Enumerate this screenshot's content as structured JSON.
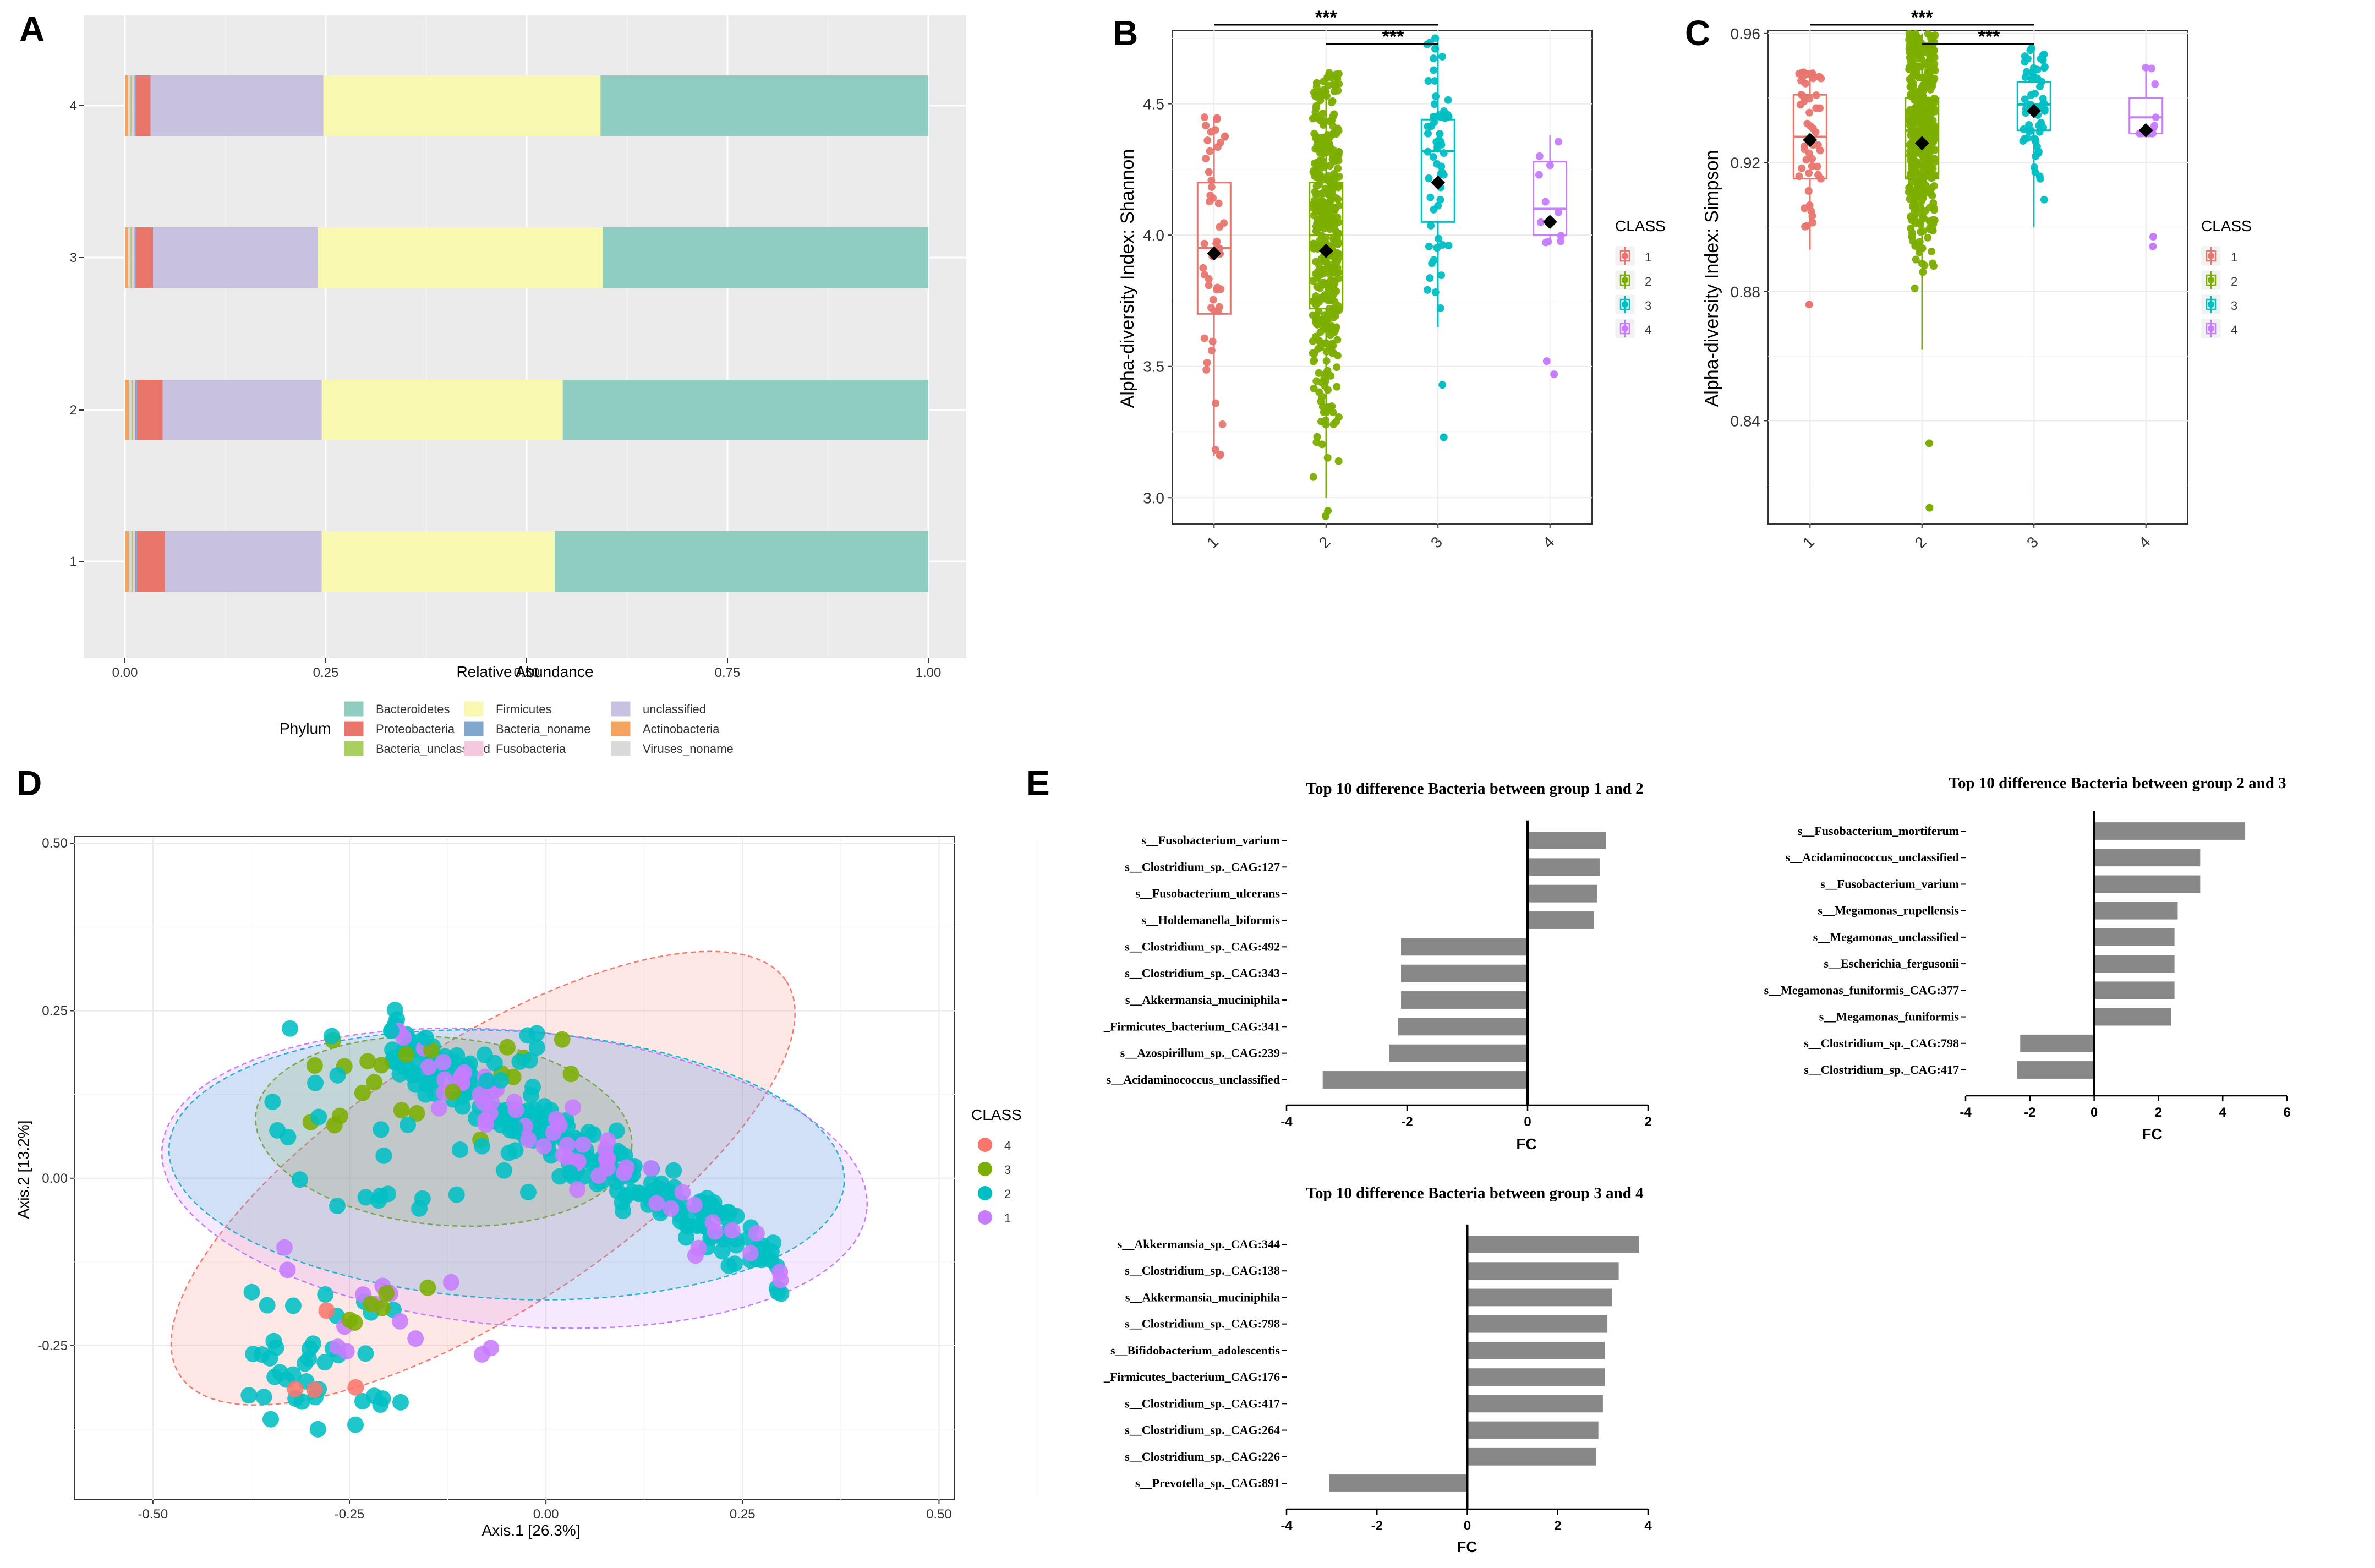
{
  "chart_data": [
    {
      "id": "A",
      "panel_label": "A",
      "type": "bar",
      "orientation": "horizontal",
      "stacked": true,
      "categories": [
        "1",
        "2",
        "3",
        "4"
      ],
      "xlabel": "Relative Abundance",
      "xlim": [
        0,
        1
      ],
      "xticks": [
        "0.00",
        "0.25",
        "0.50",
        "0.75",
        "1.00"
      ],
      "legend_title": "Phylum",
      "series": [
        {
          "name": "Actinobacteria",
          "color": "#F4A460",
          "values": [
            0.005,
            0.005,
            0.004,
            0.004
          ]
        },
        {
          "name": "Viruses_noname",
          "color": "#d9d9d9",
          "values": [
            0.003,
            0.003,
            0.003,
            0.003
          ]
        },
        {
          "name": "Bacteria_unclassified",
          "color": "#a8cf60",
          "values": [
            0.002,
            0.002,
            0.002,
            0.002
          ]
        },
        {
          "name": "Fusobacteria",
          "color": "#f4c8df",
          "values": [
            0.003,
            0.003,
            0.003,
            0.003
          ]
        },
        {
          "name": "Bacteria_noname",
          "color": "#7fa8cc",
          "values": [
            0.002,
            0.002,
            0.002,
            0.002
          ]
        },
        {
          "name": "Proteobacteria",
          "color": "#e9766a",
          "values": [
            0.035,
            0.032,
            0.021,
            0.018
          ]
        },
        {
          "name": "unclassified",
          "color": "#c8c2e0",
          "values": [
            0.195,
            0.198,
            0.205,
            0.215
          ]
        },
        {
          "name": "Firmicutes",
          "color": "#f8f8b0",
          "values": [
            0.29,
            0.3,
            0.355,
            0.345
          ]
        },
        {
          "name": "Bacteroidetes",
          "color": "#8ecdc0",
          "values": [
            0.465,
            0.455,
            0.405,
            0.408
          ]
        }
      ],
      "legend_order": [
        "Bacteroidetes",
        "Proteobacteria",
        "Bacteria_unclassified",
        "Firmicutes",
        "Bacteria_noname",
        "Fusobacteria",
        "unclassified",
        "Actinobacteria",
        "Viruses_noname"
      ]
    },
    {
      "id": "B",
      "panel_label": "B",
      "type": "scatter",
      "subtype": "boxplot_with_jitter",
      "ylabel": "Alpha-diversity Index: Shannon",
      "ylim": [
        2.9,
        4.78
      ],
      "yticks": [
        "3.0",
        "3.5",
        "4.0",
        "4.5"
      ],
      "categories": [
        "1",
        "2",
        "3",
        "4"
      ],
      "legend_title": "CLASS",
      "legend_labels": [
        "1",
        "2",
        "3",
        "4"
      ],
      "colors": [
        "#e8766f",
        "#7cae00",
        "#00bfc4",
        "#c77cff"
      ],
      "box": [
        {
          "q1": 3.7,
          "median": 3.95,
          "q3": 4.2,
          "lo": 3.16,
          "hi": 4.45,
          "mean": 3.93,
          "n": 50
        },
        {
          "q1": 3.72,
          "median": 4.0,
          "q3": 4.2,
          "lo": 3.0,
          "hi": 4.62,
          "mean": 3.94,
          "n": 420
        },
        {
          "q1": 4.05,
          "median": 4.32,
          "q3": 4.44,
          "lo": 3.65,
          "hi": 4.75,
          "mean": 4.2,
          "n": 60
        },
        {
          "q1": 4.0,
          "median": 4.1,
          "q3": 4.28,
          "lo": 3.97,
          "hi": 4.38,
          "mean": 4.05,
          "n": 12
        }
      ],
      "outliers": [
        [],
        [
          2.95,
          2.93
        ],
        [
          3.43,
          3.23
        ],
        [
          3.52,
          3.47
        ]
      ],
      "significance": [
        {
          "from": "1",
          "to": "3",
          "label": "***"
        },
        {
          "from": "2",
          "to": "3",
          "label": "***"
        }
      ]
    },
    {
      "id": "C",
      "panel_label": "C",
      "type": "scatter",
      "subtype": "boxplot_with_jitter",
      "ylabel": "Alpha-diversity Index: Simpson",
      "ylim": [
        0.808,
        0.961
      ],
      "yticks": [
        "0.84",
        "0.88",
        "0.92",
        "0.96"
      ],
      "categories": [
        "1",
        "2",
        "3",
        "4"
      ],
      "legend_title": "CLASS",
      "legend_labels": [
        "1",
        "2",
        "3",
        "4"
      ],
      "colors": [
        "#e8766f",
        "#7cae00",
        "#00bfc4",
        "#c77cff"
      ],
      "box": [
        {
          "q1": 0.915,
          "median": 0.928,
          "q3": 0.941,
          "lo": 0.893,
          "hi": 0.948,
          "mean": 0.927,
          "n": 50
        },
        {
          "q1": 0.915,
          "median": 0.93,
          "q3": 0.94,
          "lo": 0.862,
          "hi": 0.96,
          "mean": 0.926,
          "n": 420
        },
        {
          "q1": 0.93,
          "median": 0.938,
          "q3": 0.945,
          "lo": 0.9,
          "hi": 0.956,
          "mean": 0.936,
          "n": 60
        },
        {
          "q1": 0.929,
          "median": 0.934,
          "q3": 0.94,
          "lo": 0.929,
          "hi": 0.95,
          "mean": 0.93,
          "n": 12
        }
      ],
      "outliers": [
        [
          0.876
        ],
        [
          0.833,
          0.813
        ],
        [],
        [
          0.897,
          0.894
        ]
      ],
      "significance": [
        {
          "from": "1",
          "to": "3",
          "label": "***"
        },
        {
          "from": "2",
          "to": "3",
          "label": "***"
        }
      ]
    },
    {
      "id": "D",
      "panel_label": "D",
      "type": "scatter",
      "subtype": "pcoa_with_ellipses",
      "xlabel": "Axis.1   [26.3%]",
      "ylabel": "Axis.2   [13.2%]",
      "xlim": [
        -0.6,
        0.52
      ],
      "ylim": [
        -0.48,
        0.51
      ],
      "xticks": [
        "-0.50",
        "-0.25",
        "0.00",
        "0.25",
        "0.50"
      ],
      "yticks": [
        "-0.25",
        "0.00",
        "0.25",
        "0.50"
      ],
      "legend_title": "CLASS",
      "legend_labels": [
        "4",
        "3",
        "2",
        "1"
      ],
      "colors": {
        "1": "#c77cff",
        "2": "#00bfc4",
        "3": "#7cae00",
        "4": "#f8766d"
      },
      "ellipses": [
        {
          "class": "4",
          "cx": -0.08,
          "cy": 0.0,
          "rx": 0.46,
          "ry": 0.2,
          "angle": 33
        },
        {
          "class": "3",
          "cx": -0.13,
          "cy": 0.07,
          "rx": 0.24,
          "ry": 0.14,
          "angle": -5
        },
        {
          "class": "2",
          "cx": -0.05,
          "cy": 0.02,
          "rx": 0.43,
          "ry": 0.2,
          "angle": -3
        },
        {
          "class": "1",
          "cx": -0.04,
          "cy": 0.0,
          "rx": 0.45,
          "ry": 0.22,
          "angle": -5
        }
      ]
    },
    {
      "id": "E1",
      "panel_label": "E",
      "type": "bar",
      "orientation": "horizontal",
      "title": "Top 10 difference Bacteria  between group 1 and 2",
      "xlabel": "FC",
      "xlim": [
        -4,
        2
      ],
      "xticks": [
        "-4",
        "-2",
        "0",
        "2"
      ],
      "categories": [
        "s__Fusobacterium_varium",
        "s__Clostridium_sp._CAG:127",
        "s__Fusobacterium_ulcerans",
        "s__Holdemanella_biformis",
        "s__Clostridium_sp._CAG:492",
        "s__Clostridium_sp._CAG:343",
        "s__Akkermansia_muciniphila",
        "_Firmicutes_bacterium_CAG:341",
        "s__Azospirillum_sp._CAG:239",
        "s__Acidaminococcus_unclassified"
      ],
      "values": [
        1.3,
        1.2,
        1.15,
        1.1,
        -2.1,
        -2.1,
        -2.1,
        -2.15,
        -2.3,
        -3.4
      ]
    },
    {
      "id": "E2",
      "panel_label": "",
      "type": "bar",
      "orientation": "horizontal",
      "title": "Top 10 difference Bacteria  between group 2 and 3",
      "xlabel": "FC",
      "xlim": [
        -4,
        6
      ],
      "xticks": [
        "-4",
        "-2",
        "0",
        "2",
        "4",
        "6"
      ],
      "categories": [
        "s__Fusobacterium_mortiferum",
        "s__Acidaminococcus_unclassified",
        "s__Fusobacterium_varium",
        "s__Megamonas_rupellensis",
        "s__Megamonas_unclassified",
        "s__Escherichia_fergusonii",
        "s__Megamonas_funiformis_CAG:377",
        "s__Megamonas_funiformis",
        "s__Clostridium_sp._CAG:798",
        "s__Clostridium_sp._CAG:417"
      ],
      "values": [
        4.7,
        3.3,
        3.3,
        2.6,
        2.5,
        2.5,
        2.5,
        2.4,
        -2.3,
        -2.4
      ]
    },
    {
      "id": "E3",
      "panel_label": "",
      "type": "bar",
      "orientation": "horizontal",
      "title": "Top 10 difference Bacteria  between group 3 and 4",
      "xlabel": "FC",
      "xlim": [
        -4,
        4
      ],
      "xticks": [
        "-4",
        "-2",
        "0",
        "2",
        "4"
      ],
      "categories": [
        "s__Akkermansia_sp._CAG:344",
        "s__Clostridium_sp._CAG:138",
        "s__Akkermansia_muciniphila",
        "s__Clostridium_sp._CAG:798",
        "s__Bifidobacterium_adolescentis",
        "_Firmicutes_bacterium_CAG:176",
        "s__Clostridium_sp._CAG:417",
        "s__Clostridium_sp._CAG:264",
        "s__Clostridium_sp._CAG:226",
        "s__Prevotella_sp._CAG:891"
      ],
      "values": [
        3.8,
        3.35,
        3.2,
        3.1,
        3.05,
        3.05,
        3.0,
        2.9,
        2.85,
        -3.05
      ]
    }
  ]
}
